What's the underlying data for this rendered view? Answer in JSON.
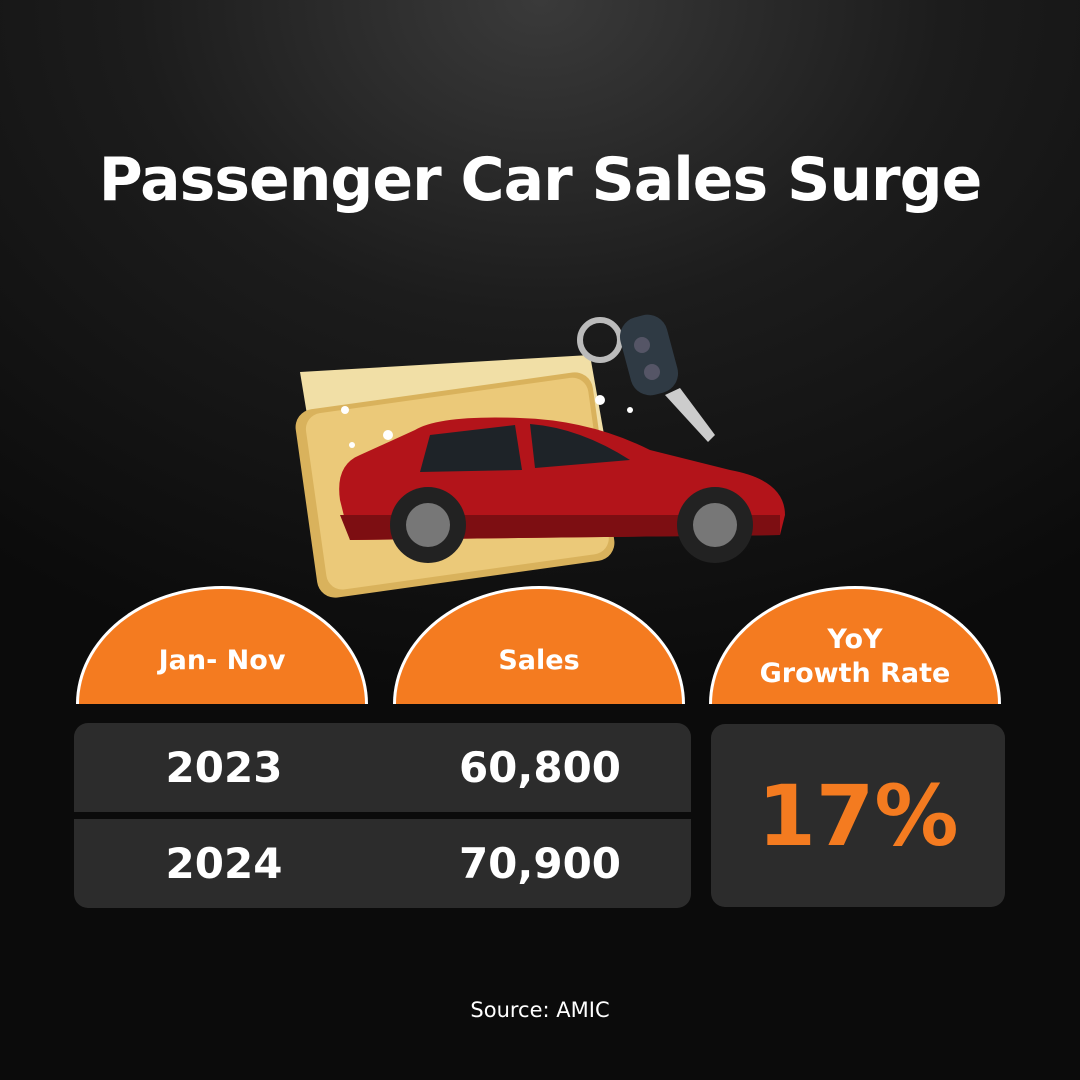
{
  "title": "Passenger Car Sales Surge",
  "headers": [
    "Jan- Nov",
    "Sales",
    "YoY\nGrowth Rate"
  ],
  "header_lines": {
    "growth_line1": "YoY",
    "growth_line2": "Growth Rate"
  },
  "rows": [
    {
      "period": "2023",
      "sales": "60,800"
    },
    {
      "period": "2024",
      "sales": "70,900"
    }
  ],
  "growth_rate": "17%",
  "source": "Source: AMIC",
  "colors": {
    "accent": "#f47b20",
    "panel": "#2c2c2c",
    "car": "#b3141a",
    "card": "#e8c77a"
  },
  "illustration": {
    "icons": [
      "gold-card-icon",
      "red-car-icon",
      "car-key-icon",
      "sparkle-icon"
    ]
  }
}
